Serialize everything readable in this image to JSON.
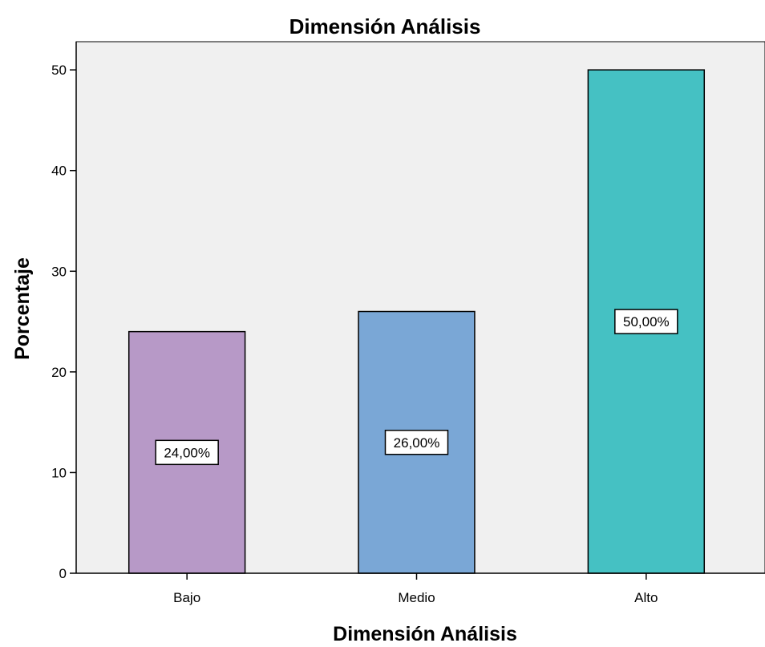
{
  "chart_data": {
    "type": "bar",
    "title": "Dimensión Análisis",
    "xlabel": "Dimensión Análisis",
    "ylabel": "Porcentaje",
    "categories": [
      "Bajo",
      "Medio",
      "Alto"
    ],
    "values": [
      24,
      26,
      50
    ],
    "data_labels": [
      "24,00%",
      "26,00%",
      "50,00%"
    ],
    "colors": [
      "#b799c7",
      "#7aa7d6",
      "#45c1c3"
    ],
    "ylim": [
      0,
      52.8
    ],
    "yticks": [
      0,
      10,
      20,
      30,
      40,
      50
    ],
    "ytick_labels": [
      "0",
      "10",
      "20",
      "30",
      "40",
      "50"
    ],
    "grid": false,
    "legend": "none",
    "plot_background": "#f0f0f0",
    "bar_border": "#000000"
  }
}
